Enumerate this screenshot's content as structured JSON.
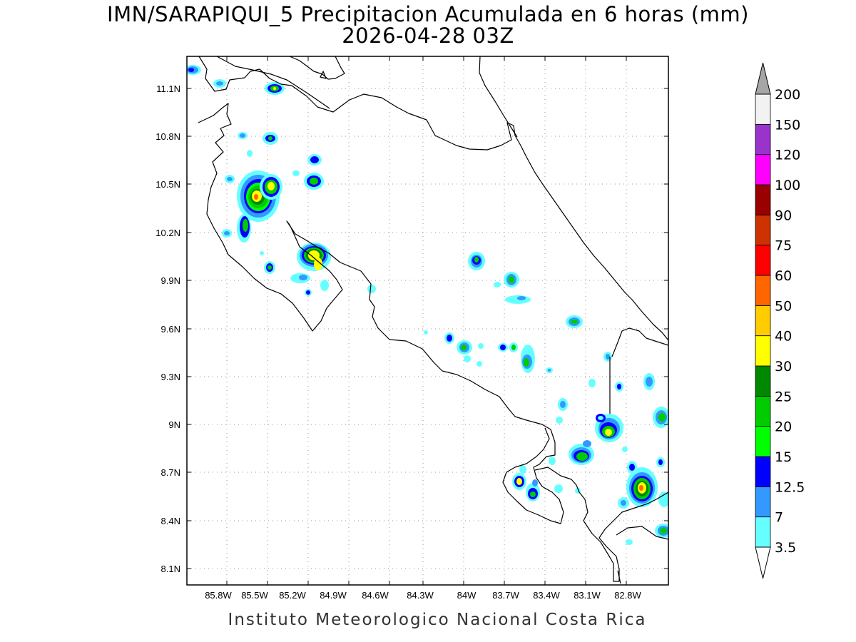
{
  "title": "IMN/SARAPIQUI_5 Precipitacion Acumulada en 6 horas (mm)",
  "subtitle": "2026-04-28 03Z",
  "footer": "Instituto Meteorologico Nacional Costa Rica",
  "map": {
    "region": "Costa Rica",
    "lon_range": [
      -86.0,
      -82.55
    ],
    "lat_range": [
      8.0,
      11.3
    ],
    "x_ticks": [
      "85.8W",
      "85.5W",
      "85.2W",
      "84.9W",
      "84.6W",
      "84.3W",
      "84W",
      "83.7W",
      "83.4W",
      "83.1W",
      "82.8W"
    ],
    "y_ticks": [
      "11.1N",
      "10.8N",
      "10.5N",
      "10.2N",
      "9.9N",
      "9.6N",
      "9.3N",
      "9N",
      "8.7N",
      "8.4N",
      "8.1N"
    ],
    "grid": "dotted"
  },
  "legend": {
    "levels": [
      "3.5",
      "7",
      "12.5",
      "15",
      "20",
      "25",
      "30",
      "40",
      "50",
      "60",
      "75",
      "90",
      "100",
      "120",
      "150",
      "200"
    ],
    "colors": [
      "#66ffff",
      "#3399ff",
      "#0000ff",
      "#00ff00",
      "#00cc00",
      "#008800",
      "#ffff00",
      "#ffcc00",
      "#ff6600",
      "#ff0000",
      "#cc3300",
      "#990000",
      "#ff00ff",
      "#9933cc",
      "#f2f2f2",
      "#a6a6a6"
    ]
  }
}
